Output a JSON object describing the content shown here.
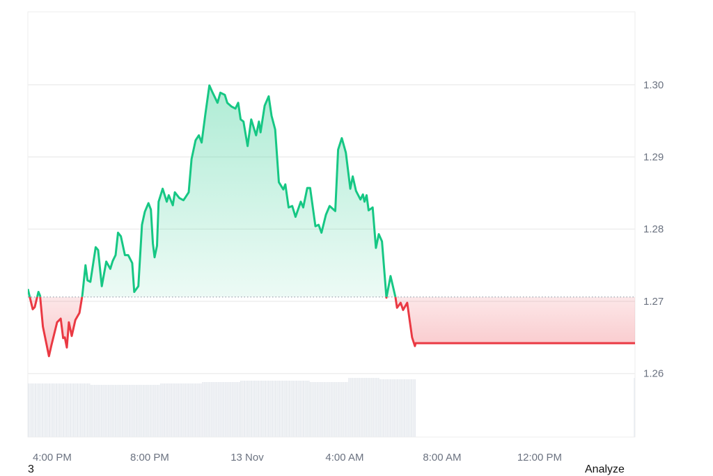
{
  "chart_data": {
    "type": "area",
    "title": "",
    "xlabel": "",
    "ylabel": "",
    "y_axis_position": "right",
    "ylim": [
      1.2512,
      1.3101
    ],
    "xlim": [
      "12 Nov 15:00",
      "13 Nov 15:55"
    ],
    "y_ticks": [
      "1.26",
      "1.27",
      "1.28",
      "1.29",
      "1.30"
    ],
    "x_ticks": [
      {
        "label": "4:00 PM",
        "at": "12 Nov 16:00"
      },
      {
        "label": "8:00 PM",
        "at": "12 Nov 20:00"
      },
      {
        "label": "13 Nov",
        "at": "13 Nov 00:00"
      },
      {
        "label": "4:00 AM",
        "at": "13 Nov 04:00"
      },
      {
        "label": "8:00 AM",
        "at": "13 Nov 08:00"
      },
      {
        "label": "12:00 PM",
        "at": "13 Nov 12:00"
      }
    ],
    "grid": true,
    "baseline": 1.2706,
    "colors": {
      "up": "#16c784",
      "down": "#ea3943",
      "up_fill": "#16c784",
      "down_fill": "#ea3943",
      "grid": "#eeeeee",
      "volume": "#e9ecf0",
      "baseline": "#9ca3af"
    },
    "series": [
      {
        "points": [
          [
            "12 Nov 15:00",
            1.2717
          ],
          [
            "12 Nov 15:12",
            1.2689
          ],
          [
            "12 Nov 15:17",
            1.2692
          ],
          [
            "12 Nov 15:26",
            1.2713
          ],
          [
            "12 Nov 15:30",
            1.2708
          ],
          [
            "12 Nov 15:37",
            1.2665
          ],
          [
            "12 Nov 15:52",
            1.2624
          ],
          [
            "12 Nov 15:58",
            1.2639
          ],
          [
            "12 Nov 16:12",
            1.2671
          ],
          [
            "12 Nov 16:21",
            1.2676
          ],
          [
            "12 Nov 16:27",
            1.2649
          ],
          [
            "12 Nov 16:31",
            1.265
          ],
          [
            "12 Nov 16:36",
            1.2636
          ],
          [
            "12 Nov 16:41",
            1.2671
          ],
          [
            "12 Nov 16:48",
            1.2652
          ],
          [
            "12 Nov 16:57",
            1.2674
          ],
          [
            "12 Nov 17:07",
            1.2684
          ],
          [
            "12 Nov 17:14",
            1.2708
          ],
          [
            "12 Nov 17:22",
            1.275
          ],
          [
            "12 Nov 17:27",
            1.2729
          ],
          [
            "12 Nov 17:34",
            1.2727
          ],
          [
            "12 Nov 17:47",
            1.2775
          ],
          [
            "12 Nov 17:53",
            1.2771
          ],
          [
            "12 Nov 18:02",
            1.2721
          ],
          [
            "12 Nov 18:13",
            1.2755
          ],
          [
            "12 Nov 18:23",
            1.2745
          ],
          [
            "12 Nov 18:29",
            1.2756
          ],
          [
            "12 Nov 18:36",
            1.2764
          ],
          [
            "12 Nov 18:42",
            1.2795
          ],
          [
            "12 Nov 18:49",
            1.279
          ],
          [
            "12 Nov 18:59",
            1.2764
          ],
          [
            "12 Nov 19:07",
            1.2764
          ],
          [
            "12 Nov 19:17",
            1.2753
          ],
          [
            "12 Nov 19:22",
            1.2713
          ],
          [
            "12 Nov 19:32",
            1.2721
          ],
          [
            "12 Nov 19:41",
            1.2806
          ],
          [
            "12 Nov 19:48",
            1.2824
          ],
          [
            "12 Nov 19:57",
            1.2836
          ],
          [
            "12 Nov 20:03",
            1.2827
          ],
          [
            "12 Nov 20:08",
            1.278
          ],
          [
            "12 Nov 20:12",
            1.2761
          ],
          [
            "12 Nov 20:18",
            1.2777
          ],
          [
            "12 Nov 20:22",
            1.2838
          ],
          [
            "12 Nov 20:32",
            1.2856
          ],
          [
            "12 Nov 20:42",
            1.2838
          ],
          [
            "12 Nov 20:47",
            1.2847
          ],
          [
            "12 Nov 20:57",
            1.2833
          ],
          [
            "12 Nov 21:02",
            1.2851
          ],
          [
            "12 Nov 21:13",
            1.2843
          ],
          [
            "12 Nov 21:23",
            1.284
          ],
          [
            "12 Nov 21:28",
            1.2844
          ],
          [
            "12 Nov 21:36",
            1.2851
          ],
          [
            "12 Nov 21:43",
            1.2897
          ],
          [
            "12 Nov 21:53",
            1.2923
          ],
          [
            "12 Nov 22:01",
            1.293
          ],
          [
            "12 Nov 22:08",
            1.292
          ],
          [
            "12 Nov 22:17",
            1.2959
          ],
          [
            "12 Nov 22:27",
            1.2999
          ],
          [
            "12 Nov 22:35",
            1.2989
          ],
          [
            "12 Nov 22:47",
            1.2975
          ],
          [
            "12 Nov 22:54",
            1.2989
          ],
          [
            "12 Nov 23:05",
            1.2986
          ],
          [
            "12 Nov 23:11",
            1.2975
          ],
          [
            "12 Nov 23:21",
            1.297
          ],
          [
            "12 Nov 23:31",
            1.2967
          ],
          [
            "12 Nov 23:38",
            1.2975
          ],
          [
            "12 Nov 23:44",
            1.2952
          ],
          [
            "12 Nov 23:51",
            1.2949
          ],
          [
            "13 Nov 00:01",
            1.2915
          ],
          [
            "13 Nov 00:10",
            1.2952
          ],
          [
            "13 Nov 00:22",
            1.293
          ],
          [
            "13 Nov 00:29",
            1.2949
          ],
          [
            "13 Nov 00:33",
            1.2934
          ],
          [
            "13 Nov 00:43",
            1.2971
          ],
          [
            "13 Nov 00:53",
            1.2984
          ],
          [
            "13 Nov 01:00",
            1.2957
          ],
          [
            "13 Nov 01:09",
            1.2938
          ],
          [
            "13 Nov 01:18",
            1.2865
          ],
          [
            "13 Nov 01:29",
            1.2855
          ],
          [
            "13 Nov 01:34",
            1.2862
          ],
          [
            "13 Nov 01:42",
            1.283
          ],
          [
            "13 Nov 01:51",
            1.2832
          ],
          [
            "13 Nov 01:59",
            1.2817
          ],
          [
            "13 Nov 02:12",
            1.2838
          ],
          [
            "13 Nov 02:18",
            1.283
          ],
          [
            "13 Nov 02:28",
            1.2857
          ],
          [
            "13 Nov 02:35",
            1.2857
          ],
          [
            "13 Nov 02:48",
            1.2804
          ],
          [
            "13 Nov 02:56",
            1.2806
          ],
          [
            "13 Nov 03:03",
            1.2795
          ],
          [
            "13 Nov 03:14",
            1.282
          ],
          [
            "13 Nov 03:23",
            1.2832
          ],
          [
            "13 Nov 03:37",
            1.2825
          ],
          [
            "13 Nov 03:44",
            1.291
          ],
          [
            "13 Nov 03:53",
            1.2926
          ],
          [
            "13 Nov 04:03",
            1.2906
          ],
          [
            "13 Nov 04:14",
            1.2856
          ],
          [
            "13 Nov 04:20",
            1.2873
          ],
          [
            "13 Nov 04:28",
            1.2853
          ],
          [
            "13 Nov 04:39",
            1.2841
          ],
          [
            "13 Nov 04:45",
            1.2848
          ],
          [
            "13 Nov 04:49",
            1.2838
          ],
          [
            "13 Nov 04:54",
            1.2847
          ],
          [
            "13 Nov 04:59",
            1.2826
          ],
          [
            "13 Nov 05:09",
            1.283
          ],
          [
            "13 Nov 05:17",
            1.2774
          ],
          [
            "13 Nov 05:24",
            1.2793
          ],
          [
            "13 Nov 05:32",
            1.2783
          ],
          [
            "13 Nov 05:43",
            1.2705
          ],
          [
            "13 Nov 05:53",
            1.2735
          ],
          [
            "13 Nov 06:05",
            1.2706
          ],
          [
            "13 Nov 06:09",
            1.2691
          ],
          [
            "13 Nov 06:18",
            1.2698
          ],
          [
            "13 Nov 06:24",
            1.2688
          ],
          [
            "13 Nov 06:34",
            1.2698
          ],
          [
            "13 Nov 06:46",
            1.265
          ],
          [
            "13 Nov 06:53",
            1.2638
          ],
          [
            "13 Nov 06:55",
            1.2642
          ],
          [
            "13 Nov 15:55",
            1.2642
          ]
        ]
      }
    ],
    "volume": [
      {
        "start": "12 Nov 15:00",
        "end": "12 Nov 17:34",
        "value": 77
      },
      {
        "start": "12 Nov 17:34",
        "end": "12 Nov 20:26",
        "value": 75
      },
      {
        "start": "12 Nov 20:26",
        "end": "12 Nov 22:09",
        "value": 77
      },
      {
        "start": "12 Nov 22:09",
        "end": "12 Nov 23:43",
        "value": 79
      },
      {
        "start": "12 Nov 23:43",
        "end": "13 Nov 02:34",
        "value": 81
      },
      {
        "start": "13 Nov 02:34",
        "end": "13 Nov 04:09",
        "value": 79
      },
      {
        "start": "13 Nov 04:09",
        "end": "13 Nov 05:26",
        "value": 85
      },
      {
        "start": "13 Nov 05:26",
        "end": "13 Nov 06:55",
        "value": 83
      },
      {
        "start": "13 Nov 15:52",
        "end": "13 Nov 15:55",
        "value": 85
      }
    ]
  },
  "footer": {
    "left_text": "3",
    "right_text": "Analyze"
  }
}
